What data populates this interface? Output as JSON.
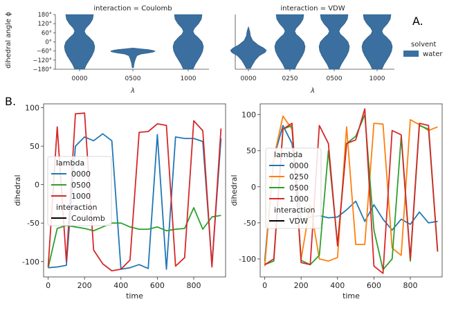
{
  "labels": {
    "panel_a": "A.",
    "panel_b": "B."
  },
  "colors": {
    "violin": "#3a6f9f",
    "c0000": "#1f77b4",
    "c0250": "#ff7f0e",
    "c0500": "#2ca02c",
    "c1000": "#d62728",
    "black": "#000000"
  },
  "chart_data": [
    {
      "type": "violin",
      "title": "interaction = Coulomb",
      "xlabel": "λ",
      "ylabel": "dihedral angle ϕ",
      "categories": [
        "0000",
        "0500",
        "1000"
      ],
      "yticks": [
        "180°",
        "120°",
        "60°",
        "0°",
        "−60°",
        "−120°",
        "−180°"
      ],
      "ylim": [
        -180,
        180
      ]
    },
    {
      "type": "violin",
      "title": "interaction = VDW",
      "xlabel": "λ",
      "categories": [
        "0000",
        "0250",
        "0500",
        "1000"
      ],
      "ylim": [
        -180,
        180
      ],
      "legend": {
        "title": "solvent",
        "entries": [
          "water"
        ]
      }
    },
    {
      "type": "line",
      "xlabel": "time",
      "ylabel": "dihedral",
      "xlim": [
        -25,
        975
      ],
      "ylim": [
        -120,
        105
      ],
      "xticks": [
        0,
        200,
        400,
        600,
        800
      ],
      "yticks": [
        -100,
        -50,
        0,
        50,
        100
      ],
      "legend": {
        "title": "lambda",
        "entries": [
          "0000",
          "0500",
          "1000"
        ],
        "title2": "interaction",
        "entries2": [
          "Coulomb"
        ]
      },
      "series": [
        {
          "name": "0000",
          "x": [
            0,
            50,
            100,
            150,
            200,
            250,
            300,
            350,
            400,
            450,
            500,
            550,
            600,
            650,
            700,
            750,
            800,
            850,
            900,
            950
          ],
          "y": [
            -108,
            -107,
            -105,
            50,
            62,
            57,
            66,
            57,
            -110,
            -108,
            -104,
            -109,
            65,
            -110,
            62,
            60,
            60,
            56,
            -104,
            60
          ]
        },
        {
          "name": "0500",
          "x": [
            0,
            50,
            100,
            150,
            200,
            250,
            300,
            350,
            400,
            450,
            500,
            550,
            600,
            650,
            700,
            750,
            800,
            850,
            900,
            950
          ],
          "y": [
            -108,
            -57,
            -53,
            -55,
            -57,
            -60,
            -55,
            -50,
            -50,
            -55,
            -58,
            -58,
            -55,
            -60,
            -58,
            -57,
            -30,
            -58,
            -42,
            -40
          ]
        },
        {
          "name": "1000",
          "x": [
            0,
            50,
            100,
            150,
            200,
            250,
            300,
            350,
            400,
            450,
            500,
            550,
            600,
            650,
            700,
            750,
            800,
            850,
            900,
            950
          ],
          "y": [
            -107,
            75,
            -100,
            92,
            93,
            -85,
            -103,
            -112,
            -110,
            -98,
            68,
            69,
            79,
            77,
            -106,
            -95,
            83,
            70,
            -107,
            73
          ]
        }
      ]
    },
    {
      "type": "line",
      "xlabel": "time",
      "ylabel": "dihedral",
      "xlim": [
        -25,
        975
      ],
      "ylim": [
        -125,
        115
      ],
      "xticks": [
        0,
        200,
        400,
        600,
        800
      ],
      "yticks": [
        -100,
        -50,
        0,
        50,
        100
      ],
      "legend": {
        "title": "lambda",
        "entries": [
          "0000",
          "0250",
          "0500",
          "1000"
        ],
        "title2": "interaction",
        "entries2": [
          "VDW"
        ]
      },
      "series": [
        {
          "name": "0000",
          "x": [
            0,
            50,
            100,
            150,
            200,
            250,
            300,
            350,
            400,
            450,
            500,
            550,
            600,
            650,
            700,
            750,
            800,
            850,
            900,
            950
          ],
          "y": [
            -103,
            40,
            85,
            60,
            -45,
            -42,
            -40,
            -43,
            -42,
            -32,
            -20,
            -48,
            -25,
            -45,
            -60,
            -45,
            -52,
            -35,
            -50,
            -48
          ]
        },
        {
          "name": "0250",
          "x": [
            0,
            50,
            100,
            150,
            200,
            250,
            300,
            350,
            400,
            450,
            500,
            550,
            600,
            650,
            700,
            750,
            800,
            850,
            900,
            950
          ],
          "y": [
            -110,
            40,
            98,
            80,
            -100,
            -25,
            -100,
            -103,
            -98,
            83,
            -80,
            -80,
            88,
            87,
            -85,
            -95,
            93,
            86,
            78,
            83
          ]
        },
        {
          "name": "0500",
          "x": [
            0,
            50,
            100,
            150,
            200,
            250,
            300,
            350,
            400,
            450,
            500,
            550,
            600,
            650,
            700,
            750,
            800,
            850,
            900,
            950
          ],
          "y": [
            -108,
            -103,
            80,
            85,
            -102,
            -108,
            -95,
            50,
            -80,
            60,
            70,
            100,
            -60,
            -115,
            -100,
            70,
            -103,
            85,
            80,
            -88
          ]
        },
        {
          "name": "1000",
          "x": [
            0,
            50,
            100,
            150,
            200,
            250,
            300,
            350,
            400,
            450,
            500,
            550,
            600,
            650,
            700,
            750,
            800,
            850,
            900,
            950
          ],
          "y": [
            -108,
            -100,
            80,
            88,
            -105,
            -108,
            85,
            60,
            -82,
            60,
            65,
            108,
            -110,
            -120,
            78,
            72,
            -100,
            88,
            85,
            -90
          ]
        }
      ]
    }
  ]
}
